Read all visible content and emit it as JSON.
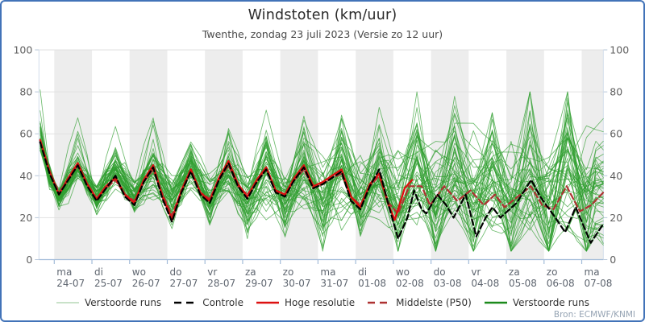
{
  "header": {
    "title": "Windstoten (km/uur)",
    "subtitle": "Twenthe, zondag 23 juli 2023 (Versie zo 12 uur)"
  },
  "source": {
    "credit": "Bron: ECMWF/KNMI"
  },
  "y_axis": {
    "ticks": [
      0,
      20,
      40,
      60,
      80,
      100
    ]
  },
  "x_axis": {
    "days": [
      {
        "weekday": "ma",
        "date": "24-07"
      },
      {
        "weekday": "di",
        "date": "25-07"
      },
      {
        "weekday": "wo",
        "date": "26-07"
      },
      {
        "weekday": "do",
        "date": "27-07"
      },
      {
        "weekday": "vr",
        "date": "28-07"
      },
      {
        "weekday": "za",
        "date": "29-07"
      },
      {
        "weekday": "zo",
        "date": "30-07"
      },
      {
        "weekday": "ma",
        "date": "31-07"
      },
      {
        "weekday": "di",
        "date": "01-08"
      },
      {
        "weekday": "wo",
        "date": "02-08"
      },
      {
        "weekday": "do",
        "date": "03-08"
      },
      {
        "weekday": "vr",
        "date": "04-08"
      },
      {
        "weekday": "za",
        "date": "05-08"
      },
      {
        "weekday": "zo",
        "date": "06-08"
      },
      {
        "weekday": "ma",
        "date": "07-08"
      }
    ]
  },
  "legend": {
    "items": [
      {
        "id": "ensemble-light",
        "label": "Verstoorde runs",
        "color": "#b7d9b7",
        "dash": false,
        "width": 1.6
      },
      {
        "id": "control",
        "label": "Controle",
        "color": "#000000",
        "dash": true,
        "width": 2.4
      },
      {
        "id": "hires",
        "label": "Hoge resolutie",
        "color": "#dd1111",
        "dash": false,
        "width": 2.6
      },
      {
        "id": "p50",
        "label": "Middelste (P50)",
        "color": "#ae3232",
        "dash": true,
        "width": 2.4
      },
      {
        "id": "ensemble-dark",
        "label": "Verstoorde runs",
        "color": "#1c8a1c",
        "dash": false,
        "width": 2.4
      }
    ]
  },
  "colors": {
    "frame": "#4273b8",
    "band": "#ededed",
    "grid": "#e1e1e1",
    "axis": "#a3bcd9",
    "side_tick": "#b9c8da",
    "edge": "#d3deeb",
    "tick_label": "#606060",
    "day_label": "#5f6670",
    "ensemble": "#2f9e2f",
    "control": "#000000",
    "hires": "#dd1111",
    "p50": "#ae3232"
  },
  "chart_data": {
    "type": "line",
    "title": "Windstoten (km/uur)",
    "ylabel": "km/uur",
    "ylim": [
      0,
      100
    ],
    "grid": true,
    "legend_position": "bottom",
    "x_unit": "days, t=0 at 24-07 00:00, points 3-hourly",
    "xlim": [
      -0.413,
      14.574
    ],
    "series": [
      {
        "name": "Controle",
        "style": "black-dashed",
        "points": [
          [
            -0.375,
            56
          ],
          [
            -0.125,
            41
          ],
          [
            0.125,
            31
          ],
          [
            0.375,
            38
          ],
          [
            0.625,
            45
          ],
          [
            0.875,
            35
          ],
          [
            1.125,
            28
          ],
          [
            1.375,
            34
          ],
          [
            1.625,
            40
          ],
          [
            1.875,
            30
          ],
          [
            2.125,
            26
          ],
          [
            2.375,
            37
          ],
          [
            2.625,
            44
          ],
          [
            2.875,
            29
          ],
          [
            3.125,
            18
          ],
          [
            3.375,
            32
          ],
          [
            3.625,
            42
          ],
          [
            3.875,
            31
          ],
          [
            4.125,
            27
          ],
          [
            4.375,
            38
          ],
          [
            4.625,
            46
          ],
          [
            4.875,
            35
          ],
          [
            5.125,
            29
          ],
          [
            5.375,
            37
          ],
          [
            5.625,
            43
          ],
          [
            5.875,
            32
          ],
          [
            6.125,
            30
          ],
          [
            6.375,
            38
          ],
          [
            6.625,
            44
          ],
          [
            6.875,
            34
          ],
          [
            7.125,
            36
          ],
          [
            7.375,
            39
          ],
          [
            7.625,
            42
          ],
          [
            7.875,
            28
          ],
          [
            8.125,
            24
          ],
          [
            8.375,
            35
          ],
          [
            8.625,
            43
          ],
          [
            8.875,
            26
          ],
          [
            9.125,
            10
          ],
          [
            9.375,
            20
          ],
          [
            9.55,
            33
          ],
          [
            9.75,
            24
          ],
          [
            9.875,
            22
          ],
          [
            10.17,
            31
          ],
          [
            10.4,
            26
          ],
          [
            10.6,
            20
          ],
          [
            10.92,
            31
          ],
          [
            11.2,
            11
          ],
          [
            11.45,
            20
          ],
          [
            11.63,
            25
          ],
          [
            11.84,
            20
          ],
          [
            12.27,
            27
          ],
          [
            12.66,
            38
          ],
          [
            12.9,
            30
          ],
          [
            13.3,
            20
          ],
          [
            13.56,
            13
          ],
          [
            13.84,
            25
          ],
          [
            14.24,
            8
          ],
          [
            14.574,
            17
          ]
        ]
      },
      {
        "name": "Hoge resolutie",
        "style": "red-solid",
        "points": [
          [
            -0.375,
            57
          ],
          [
            -0.125,
            42
          ],
          [
            0.125,
            31
          ],
          [
            0.375,
            39
          ],
          [
            0.625,
            46
          ],
          [
            0.875,
            36
          ],
          [
            1.125,
            29
          ],
          [
            1.375,
            35
          ],
          [
            1.625,
            39
          ],
          [
            1.875,
            31
          ],
          [
            2.125,
            27
          ],
          [
            2.375,
            38
          ],
          [
            2.625,
            45
          ],
          [
            2.875,
            30
          ],
          [
            3.125,
            19
          ],
          [
            3.375,
            33
          ],
          [
            3.625,
            43
          ],
          [
            3.875,
            32
          ],
          [
            4.125,
            28
          ],
          [
            4.375,
            39
          ],
          [
            4.625,
            47
          ],
          [
            4.875,
            36
          ],
          [
            5.125,
            30
          ],
          [
            5.375,
            38
          ],
          [
            5.625,
            44
          ],
          [
            5.875,
            33
          ],
          [
            6.125,
            31
          ],
          [
            6.375,
            39
          ],
          [
            6.625,
            45
          ],
          [
            6.875,
            35
          ],
          [
            7.125,
            37
          ],
          [
            7.375,
            40
          ],
          [
            7.625,
            43
          ],
          [
            7.875,
            30
          ],
          [
            8.125,
            25
          ],
          [
            8.375,
            36
          ],
          [
            8.625,
            41
          ],
          [
            8.875,
            26
          ],
          [
            9.04,
            19
          ],
          [
            9.3,
            34
          ],
          [
            9.5,
            38
          ]
        ]
      },
      {
        "name": "Middelste (P50)",
        "style": "darkred-dashed",
        "points": [
          [
            -0.375,
            56
          ],
          [
            -0.125,
            42
          ],
          [
            0.125,
            32
          ],
          [
            0.375,
            38
          ],
          [
            0.625,
            45
          ],
          [
            0.875,
            36
          ],
          [
            1.125,
            29
          ],
          [
            1.375,
            34
          ],
          [
            1.625,
            38
          ],
          [
            1.875,
            31
          ],
          [
            2.125,
            28
          ],
          [
            2.375,
            37
          ],
          [
            2.625,
            43
          ],
          [
            2.875,
            31
          ],
          [
            3.125,
            21
          ],
          [
            3.375,
            33
          ],
          [
            3.625,
            42
          ],
          [
            3.875,
            32
          ],
          [
            4.125,
            29
          ],
          [
            4.375,
            38
          ],
          [
            4.625,
            45
          ],
          [
            4.875,
            35
          ],
          [
            5.125,
            31
          ],
          [
            5.375,
            37
          ],
          [
            5.625,
            43
          ],
          [
            5.875,
            33
          ],
          [
            6.125,
            31
          ],
          [
            6.375,
            38
          ],
          [
            6.625,
            43
          ],
          [
            6.875,
            34
          ],
          [
            7.125,
            36
          ],
          [
            7.375,
            39
          ],
          [
            7.625,
            41
          ],
          [
            7.875,
            30
          ],
          [
            8.125,
            26
          ],
          [
            8.375,
            35
          ],
          [
            8.625,
            40
          ],
          [
            8.875,
            27
          ],
          [
            9.125,
            22
          ],
          [
            9.425,
            35
          ],
          [
            9.75,
            35
          ],
          [
            9.975,
            26
          ],
          [
            10.35,
            35
          ],
          [
            10.7,
            28
          ],
          [
            11.05,
            33
          ],
          [
            11.4,
            26
          ],
          [
            11.7,
            31
          ],
          [
            11.95,
            25
          ],
          [
            12.3,
            30
          ],
          [
            12.65,
            35
          ],
          [
            12.95,
            26
          ],
          [
            13.25,
            24
          ],
          [
            13.6,
            35
          ],
          [
            13.95,
            23
          ],
          [
            14.25,
            26
          ],
          [
            14.574,
            32
          ]
        ]
      }
    ],
    "ensemble": {
      "name": "Verstoorde runs",
      "count": 50,
      "seed": 11,
      "start_value_range": [
        48,
        81
      ],
      "daily_valley_base": 29,
      "daily_peak_base": 44,
      "valley_sd_per_day": 1.05,
      "peak_sd_per_day": 1.25,
      "spike_prob": 0.07
    }
  }
}
